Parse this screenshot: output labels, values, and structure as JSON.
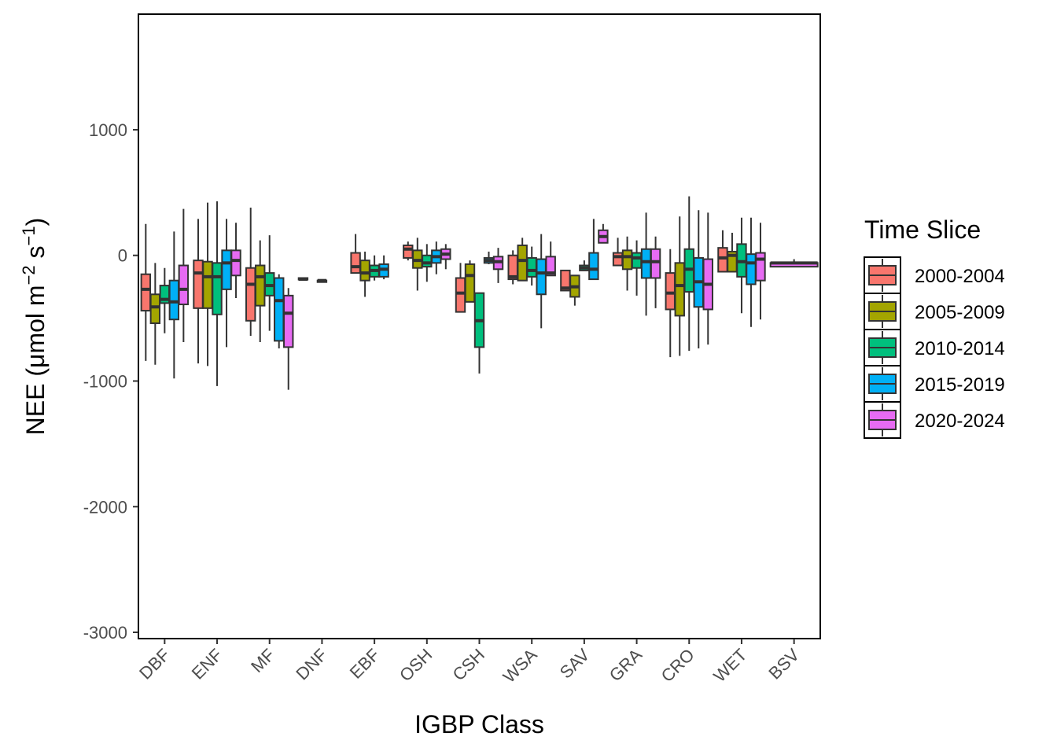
{
  "chart_data": {
    "type": "boxplot",
    "xlabel": "IGBP Class",
    "ylabel": {
      "base": "NEE (",
      "unit": "μmol m",
      "exp1": "−2",
      "mid": " s",
      "exp2": "−1",
      "end": ")"
    },
    "ylim": [
      -3050,
      1920
    ],
    "yticks": [
      1000,
      0,
      -1000,
      -2000,
      -3000
    ],
    "ytick_labels": [
      "1000",
      "0",
      "-1000",
      "-2000",
      "-3000"
    ],
    "grid": false,
    "legend": {
      "title": "Time Slice",
      "placement": "right",
      "entries": [
        "2000-2004",
        "2005-2009",
        "2010-2014",
        "2015-2019",
        "2020-2024"
      ]
    },
    "colors": {
      "2000-2004": "#F8766D",
      "2005-2009": "#A3A500",
      "2010-2014": "#00BF7D",
      "2015-2019": "#00B0F6",
      "2020-2024": "#E76BF3"
    },
    "categories": [
      "DBF",
      "ENF",
      "MF",
      "DNF",
      "EBF",
      "OSH",
      "CSH",
      "WSA",
      "SAV",
      "GRA",
      "CRO",
      "WET",
      "BSV"
    ],
    "stat_order": [
      "min",
      "q1",
      "median",
      "q3",
      "max"
    ],
    "series": [
      {
        "name": "2000-2004",
        "values": [
          [
            -840,
            -440,
            -270,
            -150,
            250
          ],
          [
            -860,
            -420,
            -140,
            -40,
            290
          ],
          [
            -640,
            -520,
            -230,
            -100,
            380
          ],
          [
            -190,
            -190,
            -190,
            -180,
            -180
          ],
          [
            -140,
            -140,
            -90,
            20,
            170
          ],
          [
            -40,
            -20,
            50,
            80,
            110
          ],
          [
            -450,
            -450,
            -300,
            -180,
            -60
          ],
          [
            -230,
            -190,
            -170,
            0,
            40
          ],
          [
            -280,
            -280,
            -260,
            -120,
            -120
          ],
          [
            -70,
            -80,
            -10,
            20,
            140
          ],
          [
            -810,
            -430,
            -300,
            -140,
            50
          ],
          [
            -130,
            -130,
            -20,
            60,
            200
          ]
        ]
      },
      {
        "name": "2005-2009",
        "values": [
          [
            -870,
            -540,
            -410,
            -310,
            -60
          ],
          [
            -880,
            -420,
            -170,
            -50,
            420
          ],
          [
            -690,
            -400,
            -170,
            -80,
            120
          ],
          null,
          [
            -330,
            -200,
            -140,
            -40,
            30
          ],
          [
            -280,
            -100,
            -40,
            40,
            140
          ],
          [
            -370,
            -370,
            -160,
            -70,
            -40
          ],
          [
            -200,
            -200,
            -40,
            80,
            140
          ],
          [
            -400,
            -330,
            -250,
            -160,
            -160
          ],
          [
            -280,
            -110,
            -10,
            40,
            150
          ],
          [
            -800,
            -480,
            -240,
            -60,
            310
          ],
          [
            -130,
            -130,
            0,
            30,
            180
          ]
        ]
      },
      {
        "name": "2010-2014",
        "values": [
          [
            -620,
            -380,
            -350,
            -240,
            -100
          ],
          [
            -1040,
            -470,
            -170,
            -60,
            430
          ],
          [
            -600,
            -320,
            -240,
            -140,
            160
          ],
          [
            -210,
            -210,
            -200,
            -200,
            -200
          ],
          [
            -200,
            -170,
            -120,
            -80,
            0
          ],
          [
            -210,
            -90,
            -60,
            0,
            90
          ],
          [
            -940,
            -730,
            -520,
            -300,
            -300
          ],
          [
            -240,
            -170,
            -120,
            -20,
            70
          ],
          [
            -80,
            -120,
            -100,
            -80,
            -40
          ],
          [
            -320,
            -100,
            -20,
            20,
            120
          ],
          [
            -760,
            -290,
            -110,
            50,
            470
          ],
          [
            -460,
            -170,
            -50,
            90,
            300
          ]
        ]
      },
      {
        "name": "2015-2019",
        "values": [
          [
            -980,
            -510,
            -370,
            -200,
            190
          ],
          [
            -730,
            -270,
            -60,
            40,
            290
          ],
          [
            -740,
            -680,
            -360,
            -180,
            -150
          ],
          null,
          [
            -190,
            -170,
            -110,
            -70,
            0
          ],
          [
            -150,
            -60,
            -10,
            40,
            110
          ],
          [
            -70,
            -60,
            -40,
            -20,
            30
          ],
          [
            -580,
            -310,
            -140,
            -30,
            170
          ],
          [
            -190,
            -190,
            -110,
            20,
            290
          ],
          [
            -480,
            -180,
            -50,
            50,
            340
          ],
          [
            -740,
            -410,
            -210,
            -20,
            360
          ],
          [
            -570,
            -230,
            -60,
            10,
            300
          ]
        ]
      },
      {
        "name": "2020-2024",
        "values": [
          [
            -690,
            -390,
            -270,
            -80,
            370
          ],
          [
            -340,
            -160,
            -40,
            40,
            260
          ],
          [
            -1070,
            -730,
            -460,
            -320,
            -260
          ],
          null,
          null,
          [
            -110,
            -30,
            10,
            50,
            90
          ],
          [
            -220,
            -110,
            -50,
            -10,
            60
          ],
          [
            -160,
            -160,
            -140,
            -10,
            110
          ],
          [
            100,
            100,
            150,
            200,
            250
          ],
          [
            -420,
            -180,
            -50,
            50,
            150
          ],
          [
            -710,
            -430,
            -230,
            -30,
            340
          ],
          [
            -510,
            -200,
            -30,
            20,
            260
          ]
        ]
      }
    ],
    "extra_boxes": [
      {
        "category": "BSV",
        "values": [
          -90,
          -90,
          -60,
          -60,
          -30
        ],
        "color": "#E76BF3"
      }
    ]
  }
}
